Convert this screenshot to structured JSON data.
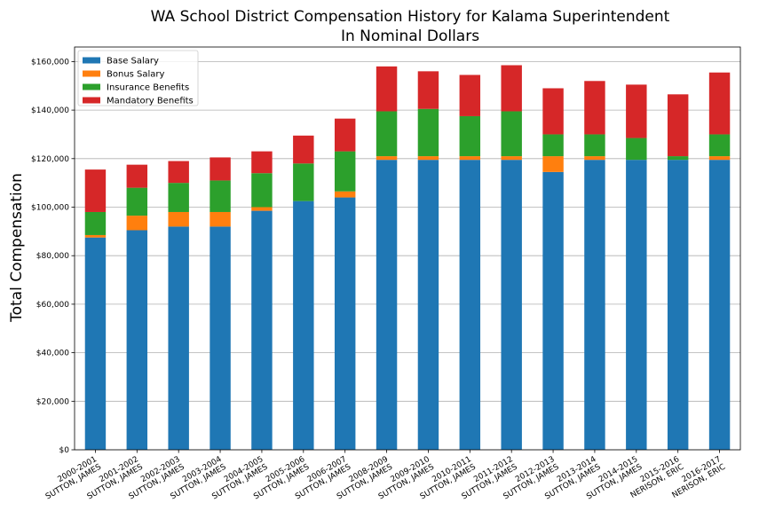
{
  "chart_data": {
    "type": "bar",
    "stacked": true,
    "title": "WA School District Compensation History for Kalama Superintendent",
    "subtitle": "In Nominal Dollars",
    "xlabel": "",
    "ylabel": "Total Compensation",
    "ylim": [
      0,
      166000
    ],
    "yticks": [
      0,
      20000,
      40000,
      60000,
      80000,
      100000,
      120000,
      140000,
      160000
    ],
    "ytick_labels": [
      "$0",
      "$20,000",
      "$40,000",
      "$60,000",
      "$80,000",
      "$100,000",
      "$120,000",
      "$140,000",
      "$160,000"
    ],
    "grid": true,
    "legend_position": "top-left",
    "categories": [
      {
        "year": "2000-2001",
        "name": "SUTTON, JAMES"
      },
      {
        "year": "2001-2002",
        "name": "SUTTON, JAMES"
      },
      {
        "year": "2002-2003",
        "name": "SUTTON, JAMES"
      },
      {
        "year": "2003-2004",
        "name": "SUTTON, JAMES"
      },
      {
        "year": "2004-2005",
        "name": "SUTTON, JAMES"
      },
      {
        "year": "2005-2006",
        "name": "SUTTON, JAMES"
      },
      {
        "year": "2006-2007",
        "name": "SUTTON, JAMES"
      },
      {
        "year": "2008-2009",
        "name": "SUTTON, JAMES"
      },
      {
        "year": "2009-2010",
        "name": "SUTTON, JAMES"
      },
      {
        "year": "2010-2011",
        "name": "SUTTON, JAMES"
      },
      {
        "year": "2011-2012",
        "name": "SUTTON, JAMES"
      },
      {
        "year": "2012-2013",
        "name": "SUTTON, JAMES"
      },
      {
        "year": "2013-2014",
        "name": "SUTTON, JAMES"
      },
      {
        "year": "2014-2015",
        "name": "SUTTON, JAMES"
      },
      {
        "year": "2015-2016",
        "name": "NERISON, ERIC"
      },
      {
        "year": "2016-2017",
        "name": "NERISON, ERIC"
      }
    ],
    "series": [
      {
        "name": "Base Salary",
        "color": "#1f77b4",
        "values": [
          87500,
          90500,
          92000,
          92000,
          98500,
          102500,
          104000,
          119500,
          119500,
          119500,
          119500,
          114500,
          119500,
          119500,
          119500,
          119500
        ]
      },
      {
        "name": "Bonus Salary",
        "color": "#ff7f0e",
        "values": [
          1000,
          6000,
          6000,
          6000,
          1500,
          0,
          2500,
          1500,
          1500,
          1500,
          1500,
          6500,
          1500,
          0,
          0,
          1500
        ]
      },
      {
        "name": "Insurance Benefits",
        "color": "#2ca02c",
        "values": [
          9500,
          11500,
          12000,
          13000,
          14000,
          15500,
          16500,
          18500,
          19500,
          16500,
          18500,
          9000,
          9000,
          9000,
          1500,
          9000
        ]
      },
      {
        "name": "Mandatory Benefits",
        "color": "#d62728",
        "values": [
          17500,
          9500,
          9000,
          9500,
          9000,
          11500,
          13500,
          18500,
          15500,
          17000,
          19000,
          19000,
          22000,
          22000,
          25500,
          25500
        ]
      }
    ]
  }
}
